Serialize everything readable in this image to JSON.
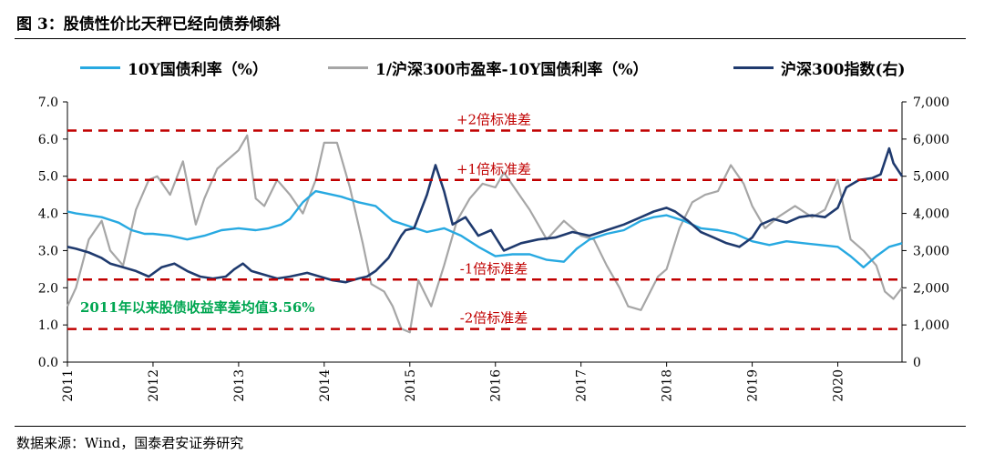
{
  "figure": {
    "title": "图 3：股债性价比天秤已经向债券倾斜",
    "source": "数据来源：Wind，国泰君安证券研究"
  },
  "colors": {
    "bond_yield": "#27a9e1",
    "equity_spread": "#a6a6a6",
    "csi300": "#1f3a6e",
    "sd_lines": "#c00000",
    "mean_annotation": "#00a651"
  },
  "chart_data": {
    "type": "line",
    "title": "股债性价比天秤已经向债券倾斜",
    "x_range": [
      2011.0,
      2020.75
    ],
    "x_ticks": [
      "2011",
      "2012",
      "2013",
      "2014",
      "2015",
      "2016",
      "2017",
      "2018",
      "2019",
      "2020"
    ],
    "y_left": {
      "range": [
        0,
        7
      ],
      "ticks": [
        "0.0",
        "1.0",
        "2.0",
        "3.0",
        "4.0",
        "5.0",
        "6.0",
        "7.0"
      ]
    },
    "y_right": {
      "range": [
        0,
        7000
      ],
      "ticks": [
        "0",
        "1,000",
        "2,000",
        "3,000",
        "4,000",
        "5,000",
        "6,000",
        "7,000"
      ]
    },
    "reference_lines": [
      {
        "label": "+2倍标准差",
        "value": 6.23
      },
      {
        "label": "+1倍标准差",
        "value": 4.9
      },
      {
        "label": "-1倍标准差",
        "value": 2.22
      },
      {
        "label": "-2倍标准差",
        "value": 0.89
      }
    ],
    "annotation": "2011年以来股债收益率差均值3.56%",
    "series": [
      {
        "name": "10Y国债利率（%）",
        "axis": "left",
        "x": [
          2011.0,
          2011.1,
          2011.25,
          2011.4,
          2011.6,
          2011.75,
          2011.9,
          2012.0,
          2012.2,
          2012.4,
          2012.6,
          2012.8,
          2013.0,
          2013.2,
          2013.35,
          2013.5,
          2013.6,
          2013.75,
          2013.9,
          2014.0,
          2014.2,
          2014.4,
          2014.6,
          2014.8,
          2015.0,
          2015.2,
          2015.4,
          2015.6,
          2015.8,
          2016.0,
          2016.2,
          2016.4,
          2016.6,
          2016.8,
          2016.95,
          2017.1,
          2017.3,
          2017.5,
          2017.7,
          2017.85,
          2018.0,
          2018.2,
          2018.4,
          2018.6,
          2018.8,
          2019.0,
          2019.2,
          2019.4,
          2019.6,
          2019.8,
          2020.0,
          2020.15,
          2020.3,
          2020.45,
          2020.6,
          2020.75
        ],
        "values": [
          4.05,
          4.0,
          3.95,
          3.9,
          3.75,
          3.55,
          3.45,
          3.45,
          3.4,
          3.3,
          3.4,
          3.55,
          3.6,
          3.55,
          3.6,
          3.7,
          3.85,
          4.3,
          4.6,
          4.55,
          4.45,
          4.3,
          4.2,
          3.8,
          3.65,
          3.5,
          3.6,
          3.4,
          3.1,
          2.85,
          2.9,
          2.9,
          2.75,
          2.7,
          3.05,
          3.3,
          3.45,
          3.55,
          3.8,
          3.9,
          3.95,
          3.8,
          3.6,
          3.55,
          3.45,
          3.25,
          3.15,
          3.25,
          3.2,
          3.15,
          3.1,
          2.85,
          2.55,
          2.85,
          3.1,
          3.2
        ]
      },
      {
        "name": "1/沪深300市盈率-10Y国债利率（%）",
        "axis": "left",
        "x": [
          2011.0,
          2011.1,
          2011.25,
          2011.4,
          2011.5,
          2011.65,
          2011.8,
          2011.95,
          2012.05,
          2012.2,
          2012.35,
          2012.5,
          2012.6,
          2012.75,
          2012.9,
          2013.0,
          2013.1,
          2013.2,
          2013.3,
          2013.45,
          2013.6,
          2013.75,
          2013.9,
          2014.0,
          2014.15,
          2014.3,
          2014.45,
          2014.55,
          2014.7,
          2014.8,
          2014.9,
          2015.0,
          2015.1,
          2015.25,
          2015.4,
          2015.55,
          2015.7,
          2015.85,
          2016.0,
          2016.1,
          2016.25,
          2016.4,
          2016.6,
          2016.8,
          2017.0,
          2017.15,
          2017.3,
          2017.45,
          2017.55,
          2017.7,
          2017.9,
          2018.0,
          2018.15,
          2018.3,
          2018.45,
          2018.6,
          2018.75,
          2018.9,
          2019.0,
          2019.15,
          2019.3,
          2019.5,
          2019.7,
          2019.85,
          2020.0,
          2020.15,
          2020.3,
          2020.45,
          2020.55,
          2020.65,
          2020.75
        ],
        "values": [
          1.5,
          2.0,
          3.3,
          3.8,
          3.0,
          2.6,
          4.1,
          4.9,
          5.0,
          4.5,
          5.4,
          3.7,
          4.4,
          5.2,
          5.5,
          5.7,
          6.1,
          4.4,
          4.2,
          4.9,
          4.5,
          4.0,
          4.9,
          5.9,
          5.9,
          4.7,
          3.2,
          2.1,
          1.9,
          1.5,
          0.9,
          0.8,
          2.2,
          1.5,
          2.6,
          3.8,
          4.4,
          4.8,
          4.7,
          5.1,
          4.6,
          4.1,
          3.3,
          3.8,
          3.4,
          3.3,
          2.6,
          2.0,
          1.5,
          1.4,
          2.3,
          2.5,
          3.6,
          4.3,
          4.5,
          4.6,
          5.3,
          4.8,
          4.2,
          3.6,
          3.9,
          4.2,
          3.9,
          4.1,
          4.9,
          3.3,
          3.0,
          2.6,
          1.9,
          1.7,
          2.0
        ]
      },
      {
        "name": "沪深300指数(右)",
        "axis": "right",
        "x": [
          2011.0,
          2011.1,
          2011.25,
          2011.4,
          2011.5,
          2011.65,
          2011.8,
          2011.95,
          2012.1,
          2012.25,
          2012.4,
          2012.55,
          2012.7,
          2012.85,
          2012.95,
          2013.05,
          2013.15,
          2013.3,
          2013.45,
          2013.6,
          2013.8,
          2013.95,
          2014.1,
          2014.25,
          2014.4,
          2014.5,
          2014.6,
          2014.75,
          2014.9,
          2014.95,
          2015.05,
          2015.2,
          2015.3,
          2015.4,
          2015.5,
          2015.65,
          2015.8,
          2015.95,
          2016.1,
          2016.3,
          2016.5,
          2016.7,
          2016.9,
          2017.1,
          2017.3,
          2017.5,
          2017.7,
          2017.85,
          2018.0,
          2018.1,
          2018.25,
          2018.4,
          2018.55,
          2018.7,
          2018.85,
          2019.0,
          2019.1,
          2019.25,
          2019.4,
          2019.55,
          2019.7,
          2019.85,
          2020.0,
          2020.1,
          2020.25,
          2020.4,
          2020.5,
          2020.6,
          2020.65,
          2020.75
        ],
        "values": [
          3100,
          3050,
          2950,
          2800,
          2650,
          2550,
          2450,
          2300,
          2550,
          2650,
          2450,
          2300,
          2250,
          2300,
          2500,
          2650,
          2450,
          2350,
          2250,
          2300,
          2400,
          2300,
          2200,
          2150,
          2250,
          2300,
          2450,
          2800,
          3400,
          3550,
          3600,
          4500,
          5300,
          4600,
          3700,
          3900,
          3400,
          3550,
          3000,
          3200,
          3300,
          3350,
          3500,
          3400,
          3550,
          3700,
          3900,
          4050,
          4150,
          4050,
          3800,
          3500,
          3350,
          3200,
          3100,
          3350,
          3700,
          3850,
          3750,
          3900,
          3950,
          3900,
          4150,
          4700,
          4900,
          4950,
          5050,
          5750,
          5350,
          5000
        ]
      }
    ]
  }
}
